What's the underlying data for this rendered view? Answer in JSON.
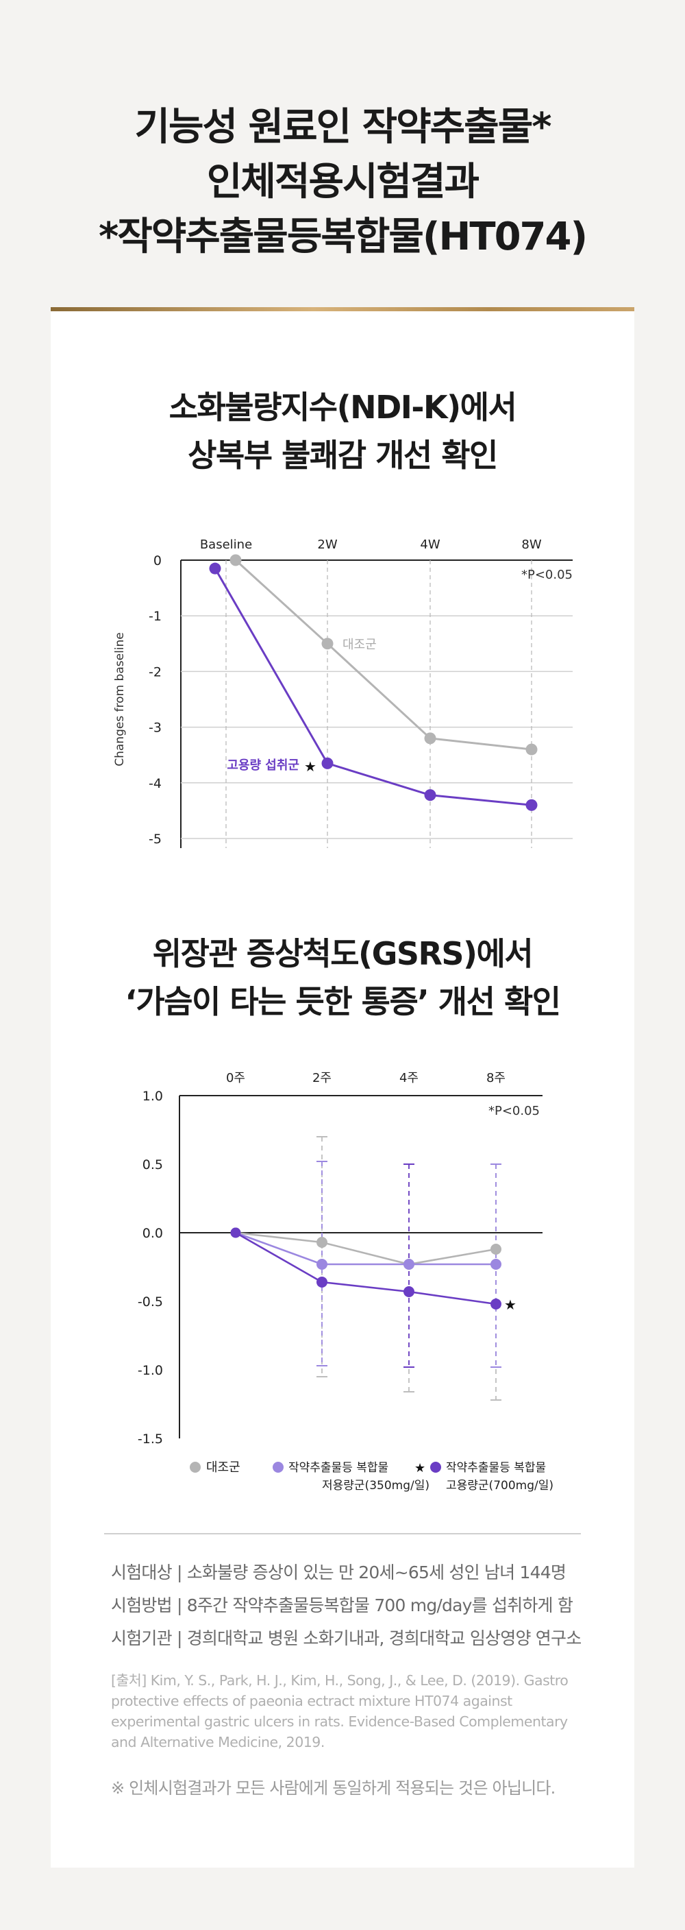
{
  "header": {
    "line1": "기능성 원료인 작약추출물*",
    "line2": "인체적용시험결과",
    "line3": "*작약추출물등복합물(HT074)"
  },
  "chart1": {
    "title_line1": "소화불량지수(NDI-K)에서",
    "title_line2": "상복부 불쾌감 개선 확인"
  },
  "chart2": {
    "title_line1": "위장관 증상척도(GSRS)에서",
    "title_line2": "‘가슴이 타는 듯한 통증’ 개선 확인"
  },
  "chart_data": [
    {
      "type": "line",
      "x": [
        "Baseline",
        "2W",
        "4W",
        "8W"
      ],
      "ylabel": "Changes from baseline",
      "ylim": [
        -5,
        0
      ],
      "yticks": [
        "0",
        "-1",
        "-2",
        "-3",
        "-4",
        "-5"
      ],
      "annotation": "*P<0.05",
      "grid": true,
      "series": [
        {
          "name": "대조군",
          "color": "#b4b4b4",
          "values": [
            0,
            -1.5,
            -3.2,
            -3.4
          ]
        },
        {
          "name": "고용량 섭취군",
          "color": "#6a3dc4",
          "values": [
            -0.15,
            -3.65,
            -4.22,
            -4.4
          ],
          "significance_marker": "★"
        }
      ]
    },
    {
      "type": "line",
      "x": [
        "0주",
        "2주",
        "4주",
        "8주"
      ],
      "ylim": [
        -1.5,
        1.0
      ],
      "yticks": [
        "1.0",
        "0.5",
        "0.0",
        "-0.5",
        "-1.0",
        "-1.5"
      ],
      "annotation": "*P<0.05",
      "legend_position": "bottom",
      "series": [
        {
          "name": "대조군",
          "color": "#b4b4b4",
          "values": [
            0,
            -0.07,
            -0.23,
            -0.12
          ]
        },
        {
          "name": "작약추출물등 복합물 저용량군(350mg/일)",
          "color": "#9b87e0",
          "values": [
            0,
            -0.23,
            -0.23,
            -0.23
          ]
        },
        {
          "name": "작약추출물등 복합물 고용량군(700mg/일)",
          "color": "#6a3dc4",
          "values": [
            0,
            -0.36,
            -0.43,
            -0.52
          ],
          "significance_marker": "★"
        }
      ],
      "legend_labels": {
        "control": "대조군",
        "low_line1": "작약추출물등 복합물",
        "low_line2": "저용량군(350mg/일)",
        "high_line1": "작약추출물등 복합물",
        "high_line2": "고용량군(700mg/일)",
        "star": "★"
      }
    }
  ],
  "info": {
    "subjects": "시험대상 | 소화불량 증상이 있는 만 20세~65세 성인 남녀 144명",
    "method": "시험방법 | 8주간 작약추출물등복합물 700 mg/day를 섭취하게 함",
    "institution": "시험기관 | 경희대학교 병원 소화기내과, 경희대학교 임상영양 연구소"
  },
  "citation": "[출처] Kim, Y. S., Park, H. J., Kim, H., Song, J., & Lee, D. (2019). Gastro protective effects of paeonia ectract mixture HT074 against experimental gastric ulcers in rats. Evidence-Based Complementary and Alternative Medicine, 2019.",
  "note": "※ 인체시험결과가 모든 사람에게 동일하게 적용되는 것은 아닙니다."
}
